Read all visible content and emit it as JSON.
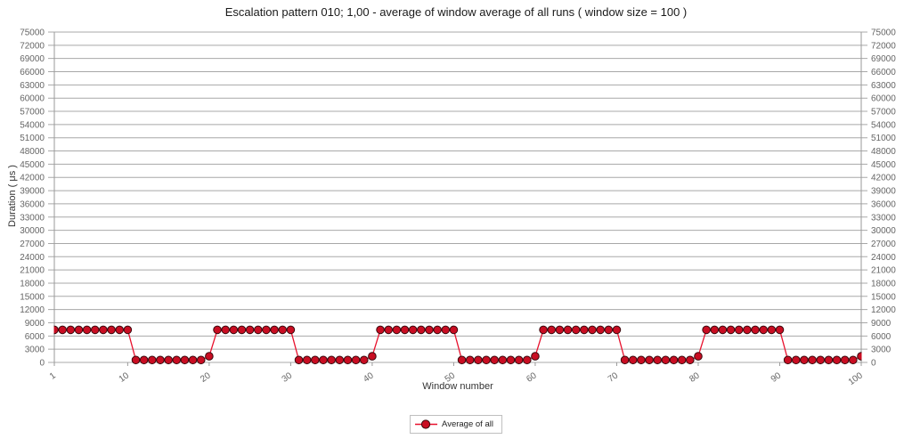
{
  "chart_data": {
    "type": "line",
    "title": "Escalation pattern 010; 1,00 - average of window average of all runs ( window size = 100 )",
    "xlabel": "Window number",
    "ylabel": "Duration ( μs )",
    "ylim": [
      0,
      75000
    ],
    "x_range": [
      1,
      100
    ],
    "y_tick_step": 3000,
    "y_ticks": [
      0,
      3000,
      6000,
      9000,
      12000,
      15000,
      18000,
      21000,
      24000,
      27000,
      30000,
      33000,
      36000,
      39000,
      42000,
      45000,
      48000,
      51000,
      54000,
      57000,
      60000,
      63000,
      66000,
      69000,
      72000,
      75000
    ],
    "x_ticks": [
      1,
      10,
      20,
      30,
      40,
      50,
      60,
      70,
      80,
      90,
      100
    ],
    "grid": "horizontal",
    "y_labels_both_sides": true,
    "legend_position": "bottom-center",
    "series": [
      {
        "name": "Average of all",
        "values": [
          7400,
          7400,
          7400,
          7400,
          7400,
          7400,
          7400,
          7400,
          7400,
          7400,
          550,
          550,
          550,
          550,
          550,
          550,
          550,
          550,
          550,
          1400,
          7400,
          7400,
          7400,
          7400,
          7400,
          7400,
          7400,
          7400,
          7400,
          7400,
          550,
          550,
          550,
          550,
          550,
          550,
          550,
          550,
          550,
          1400,
          7400,
          7400,
          7400,
          7400,
          7400,
          7400,
          7400,
          7400,
          7400,
          7400,
          550,
          550,
          550,
          550,
          550,
          550,
          550,
          550,
          550,
          1400,
          7400,
          7400,
          7400,
          7400,
          7400,
          7400,
          7400,
          7400,
          7400,
          7400,
          550,
          550,
          550,
          550,
          550,
          550,
          550,
          550,
          550,
          1400,
          7400,
          7400,
          7400,
          7400,
          7400,
          7400,
          7400,
          7400,
          7400,
          7400,
          550,
          550,
          550,
          550,
          550,
          550,
          550,
          550,
          550,
          1400
        ]
      }
    ],
    "style": {
      "line_color": "#e8112d",
      "marker_fill": "#c90d22",
      "marker_stroke": "#38090d",
      "grid_color": "#a8a8a8",
      "axis_color": "#9a9a9a",
      "tick_label_color": "#666666",
      "title_color": "#1a1a1a",
      "background": "#ffffff"
    }
  }
}
